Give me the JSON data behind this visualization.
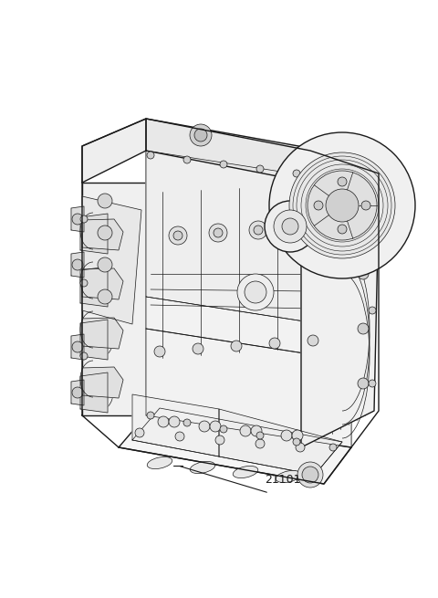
{
  "background_color": "#ffffff",
  "label_text": "21101",
  "label_fontsize": 9,
  "fig_width": 4.8,
  "fig_height": 6.55,
  "dpi": 100,
  "engine_color": "#1a1a1a",
  "face_fill": "#f8f8f8",
  "face_fill2": "#f2f2f2",
  "face_fill3": "#ececec"
}
